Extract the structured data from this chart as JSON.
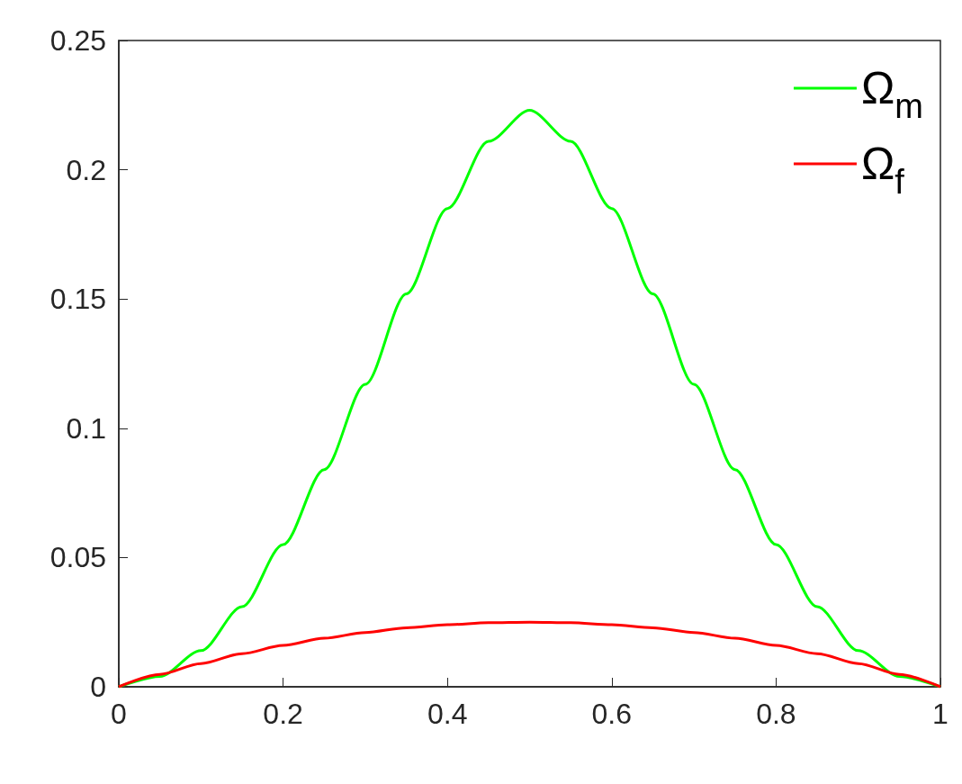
{
  "chart_data": {
    "type": "line",
    "x": [
      0,
      0.05,
      0.1,
      0.15,
      0.2,
      0.25,
      0.3,
      0.35,
      0.4,
      0.45,
      0.5,
      0.55,
      0.6,
      0.65,
      0.7,
      0.75,
      0.8,
      0.85,
      0.9,
      0.95,
      1
    ],
    "series": [
      {
        "name": "Ω$_{m}$",
        "color": "#00ff00",
        "values": [
          0,
          0.004,
          0.014,
          0.031,
          0.055,
          0.084,
          0.117,
          0.152,
          0.185,
          0.211,
          0.223,
          0.211,
          0.185,
          0.152,
          0.117,
          0.084,
          0.055,
          0.031,
          0.014,
          0.004,
          0
        ]
      },
      {
        "name": "Ω$_{f}$",
        "color": "#ff0000",
        "values": [
          0,
          0.0048,
          0.009,
          0.0128,
          0.016,
          0.0188,
          0.021,
          0.0228,
          0.024,
          0.0248,
          0.025,
          0.0248,
          0.024,
          0.0228,
          0.021,
          0.0188,
          0.016,
          0.0128,
          0.009,
          0.0048,
          0
        ]
      }
    ],
    "xlim": [
      0,
      1
    ],
    "xticks": [
      0,
      0.2,
      0.4,
      0.6,
      0.8,
      1
    ],
    "ylim": [
      0,
      0.25
    ],
    "yticks": [
      0,
      0.05,
      0.1,
      0.15,
      0.2,
      0.25
    ],
    "legend": "top right",
    "line_style": "solid",
    "marker": "none",
    "grid": false
  }
}
